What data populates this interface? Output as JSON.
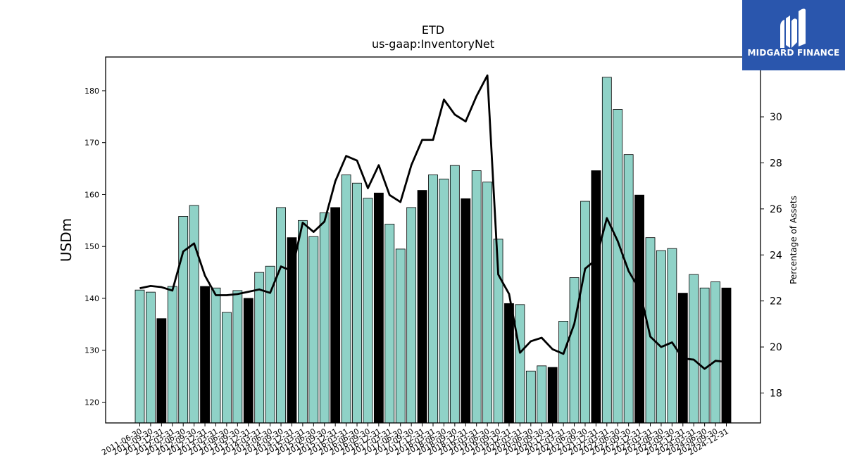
{
  "chart_data": {
    "type": "bar+line",
    "title": "ETD",
    "subtitle": "us-gaap:InventoryNet",
    "ylabel": "USDm",
    "y2label": "Percentage of Assets",
    "ylim": [
      116,
      186.5
    ],
    "y2lim": [
      16.7,
      32.6
    ],
    "yticks": [
      120,
      130,
      140,
      150,
      160,
      170,
      180
    ],
    "y2ticks": [
      18,
      20,
      22,
      24,
      26,
      28,
      30
    ],
    "categories": [
      "2011-06-30",
      "2011-09-30",
      "2011-12-31",
      "2012-03-31",
      "2012-06-30",
      "2012-09-30",
      "2012-12-31",
      "2013-03-31",
      "2013-06-30",
      "2013-09-30",
      "2013-12-31",
      "2014-03-31",
      "2014-06-30",
      "2014-09-30",
      "2014-12-31",
      "2015-03-31",
      "2015-06-30",
      "2015-09-30",
      "2015-12-31",
      "2016-03-31",
      "2016-06-30",
      "2016-09-30",
      "2016-12-31",
      "2017-03-31",
      "2017-06-30",
      "2017-09-30",
      "2017-12-31",
      "2018-03-31",
      "2018-06-30",
      "2018-09-30",
      "2018-12-31",
      "2019-03-31",
      "2019-06-30",
      "2019-09-30",
      "2019-12-31",
      "2020-03-31",
      "2020-06-30",
      "2020-09-30",
      "2020-12-31",
      "2021-03-31",
      "2021-06-30",
      "2021-09-30",
      "2021-12-31",
      "2022-03-31",
      "2022-06-30",
      "2022-09-30",
      "2022-12-31",
      "2023-03-31",
      "2023-06-30",
      "2023-09-30",
      "2023-12-31",
      "2024-03-31",
      "2024-06-30",
      "2024-09-30",
      "2024-12-31"
    ],
    "series": [
      {
        "kind": "bar",
        "values": [
          141.6,
          141.2,
          136.1,
          142.3,
          155.8,
          157.9,
          142.3,
          142.0,
          137.3,
          141.5,
          140.0,
          145.0,
          146.2,
          157.5,
          151.7,
          155.0,
          151.9,
          156.5,
          157.5,
          163.8,
          162.2,
          159.3,
          160.3,
          154.3,
          149.5,
          157.5,
          160.8,
          163.8,
          163.0,
          165.6,
          159.2,
          164.6,
          162.4,
          151.4,
          139.0,
          138.8,
          126.0,
          127.0,
          126.7,
          135.6,
          144.0,
          158.7,
          164.6,
          182.6,
          176.4,
          167.7,
          159.9,
          151.7,
          149.2,
          149.6,
          141.0,
          144.6,
          142.0,
          143.2,
          142.0
        ]
      },
      {
        "kind": "line",
        "axis": "right",
        "values": [
          22.55,
          22.65,
          22.6,
          22.45,
          24.15,
          24.5,
          23.1,
          22.25,
          22.25,
          22.3,
          22.4,
          22.5,
          22.35,
          23.5,
          23.3,
          25.4,
          25.0,
          25.45,
          27.2,
          28.3,
          28.1,
          26.9,
          27.9,
          26.6,
          26.3,
          27.9,
          29.0,
          29.0,
          30.75,
          30.1,
          29.8,
          30.9,
          31.8,
          23.15,
          22.3,
          19.75,
          20.25,
          20.4,
          19.9,
          19.7,
          21.0,
          23.4,
          23.8,
          25.6,
          24.6,
          23.3,
          22.5,
          20.45,
          20.0,
          20.2,
          19.5,
          19.45,
          19.05,
          19.4,
          19.35
        ]
      }
    ],
    "bar_colors": [
      "#8fd2c7",
      "#8fd2c7",
      "#000000",
      "#8fd2c7",
      "#8fd2c7",
      "#8fd2c7",
      "#000000",
      "#8fd2c7",
      "#8fd2c7",
      "#8fd2c7",
      "#000000",
      "#8fd2c7",
      "#8fd2c7",
      "#8fd2c7",
      "#000000",
      "#8fd2c7",
      "#8fd2c7",
      "#8fd2c7",
      "#000000",
      "#8fd2c7",
      "#8fd2c7",
      "#8fd2c7",
      "#000000",
      "#8fd2c7",
      "#8fd2c7",
      "#8fd2c7",
      "#000000",
      "#8fd2c7",
      "#8fd2c7",
      "#8fd2c7",
      "#000000",
      "#8fd2c7",
      "#8fd2c7",
      "#8fd2c7",
      "#000000",
      "#8fd2c7",
      "#8fd2c7",
      "#8fd2c7",
      "#000000",
      "#8fd2c7",
      "#8fd2c7",
      "#8fd2c7",
      "#000000",
      "#8fd2c7",
      "#8fd2c7",
      "#8fd2c7",
      "#000000",
      "#8fd2c7",
      "#8fd2c7",
      "#8fd2c7",
      "#000000",
      "#8fd2c7",
      "#8fd2c7",
      "#8fd2c7",
      "#000000"
    ],
    "line_color": "#000000",
    "grid": false
  },
  "logo": {
    "text": "MIDGARD FINANCE",
    "background": "#2a56ad"
  }
}
